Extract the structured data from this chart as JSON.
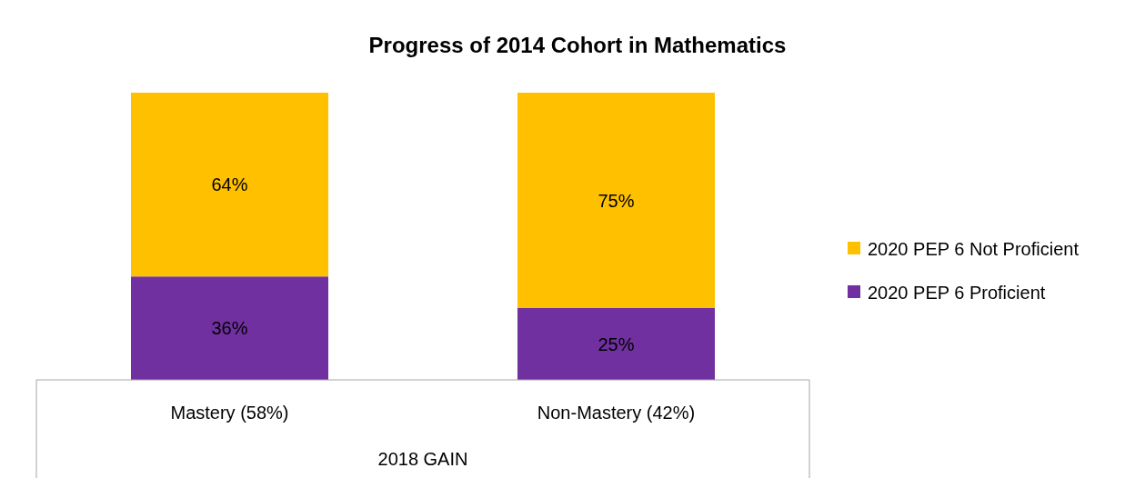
{
  "chart_data": {
    "type": "bar",
    "title": "Progress of 2014 Cohort in Mathematics",
    "xlabel": "2018 GAIN",
    "categories": [
      "Mastery (58%)",
      "Non-Mastery (42%)"
    ],
    "stacked": true,
    "legend": "right",
    "ylim": [
      0,
      100
    ],
    "series": [
      {
        "name": "2020 PEP 6 Proficient",
        "color": "#7030a0",
        "values": [
          36,
          25
        ],
        "value_labels": [
          "36%",
          "25%"
        ]
      },
      {
        "name": "2020 PEP 6 Not Proficient",
        "color": "#ffc000",
        "values": [
          64,
          75
        ],
        "value_labels": [
          "64%",
          "75%"
        ]
      }
    ]
  }
}
